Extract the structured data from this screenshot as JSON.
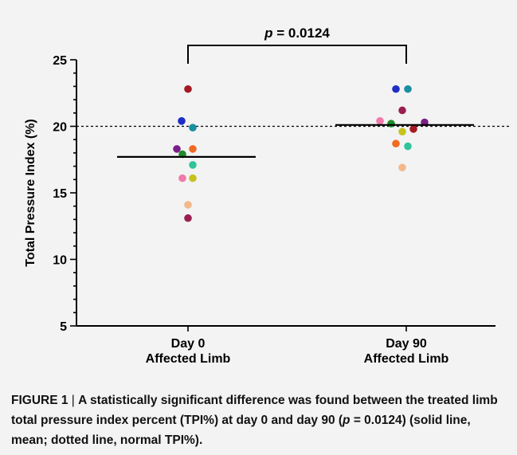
{
  "chart_data": {
    "type": "scatter",
    "ylabel": "Total Pressure Index (%)",
    "ylim": [
      5,
      25
    ],
    "yticks": [
      5,
      10,
      15,
      20,
      25
    ],
    "y_minor_step": 1,
    "categories": [
      {
        "line1": "Day 0",
        "line2": "Affected Limb"
      },
      {
        "line1": "Day 90",
        "line2": "Affected Limb"
      }
    ],
    "reference_line": {
      "value": 20,
      "style": "dotted"
    },
    "means": [
      17.7,
      20.1
    ],
    "significance": {
      "label_p": "p",
      "label_rest": " = 0.0124",
      "between": [
        0,
        1
      ]
    },
    "points": [
      {
        "group": 0,
        "y": 22.8,
        "offset": 0,
        "color": "#a31a22"
      },
      {
        "group": 0,
        "y": 20.4,
        "offset": -8,
        "color": "#1f2ec4"
      },
      {
        "group": 0,
        "y": 19.9,
        "offset": 6,
        "color": "#1a8fa2"
      },
      {
        "group": 0,
        "y": 18.3,
        "offset": -14,
        "color": "#7a1f86"
      },
      {
        "group": 0,
        "y": 18.3,
        "offset": 6,
        "color": "#f06a22"
      },
      {
        "group": 0,
        "y": 17.9,
        "offset": -7,
        "color": "#1f8a2a"
      },
      {
        "group": 0,
        "y": 17.1,
        "offset": 6,
        "color": "#30c49a"
      },
      {
        "group": 0,
        "y": 16.1,
        "offset": -7,
        "color": "#f07aa8"
      },
      {
        "group": 0,
        "y": 16.1,
        "offset": 6,
        "color": "#c6c21e"
      },
      {
        "group": 0,
        "y": 14.1,
        "offset": 0,
        "color": "#f2b88a"
      },
      {
        "group": 0,
        "y": 13.1,
        "offset": 0,
        "color": "#9a1f50"
      },
      {
        "group": 1,
        "y": 22.8,
        "offset": -13,
        "color": "#1f2ec4"
      },
      {
        "group": 1,
        "y": 22.8,
        "offset": 2,
        "color": "#1a8fa2"
      },
      {
        "group": 1,
        "y": 21.2,
        "offset": -5,
        "color": "#9a1f50"
      },
      {
        "group": 1,
        "y": 20.4,
        "offset": -33,
        "color": "#f07aa8"
      },
      {
        "group": 1,
        "y": 20.3,
        "offset": 23,
        "color": "#7a1f86"
      },
      {
        "group": 1,
        "y": 20.2,
        "offset": -19,
        "color": "#1f8a2a"
      },
      {
        "group": 1,
        "y": 19.8,
        "offset": 9,
        "color": "#a31a22"
      },
      {
        "group": 1,
        "y": 19.6,
        "offset": -5,
        "color": "#c6c21e"
      },
      {
        "group": 1,
        "y": 18.7,
        "offset": -13,
        "color": "#f06a22"
      },
      {
        "group": 1,
        "y": 18.5,
        "offset": 2,
        "color": "#30c49a"
      },
      {
        "group": 1,
        "y": 16.9,
        "offset": -5,
        "color": "#f2b88a"
      }
    ]
  },
  "caption": {
    "label": "FIGURE 1",
    "separator": " | ",
    "text_before": "A statistically significant difference was found between the treated limb total pressure index percent (TPI%) at day 0 and day 90 (",
    "p_symbol": "p",
    "text_after": " = 0.0124) (solid line, mean; dotted line, normal TPI%)."
  }
}
